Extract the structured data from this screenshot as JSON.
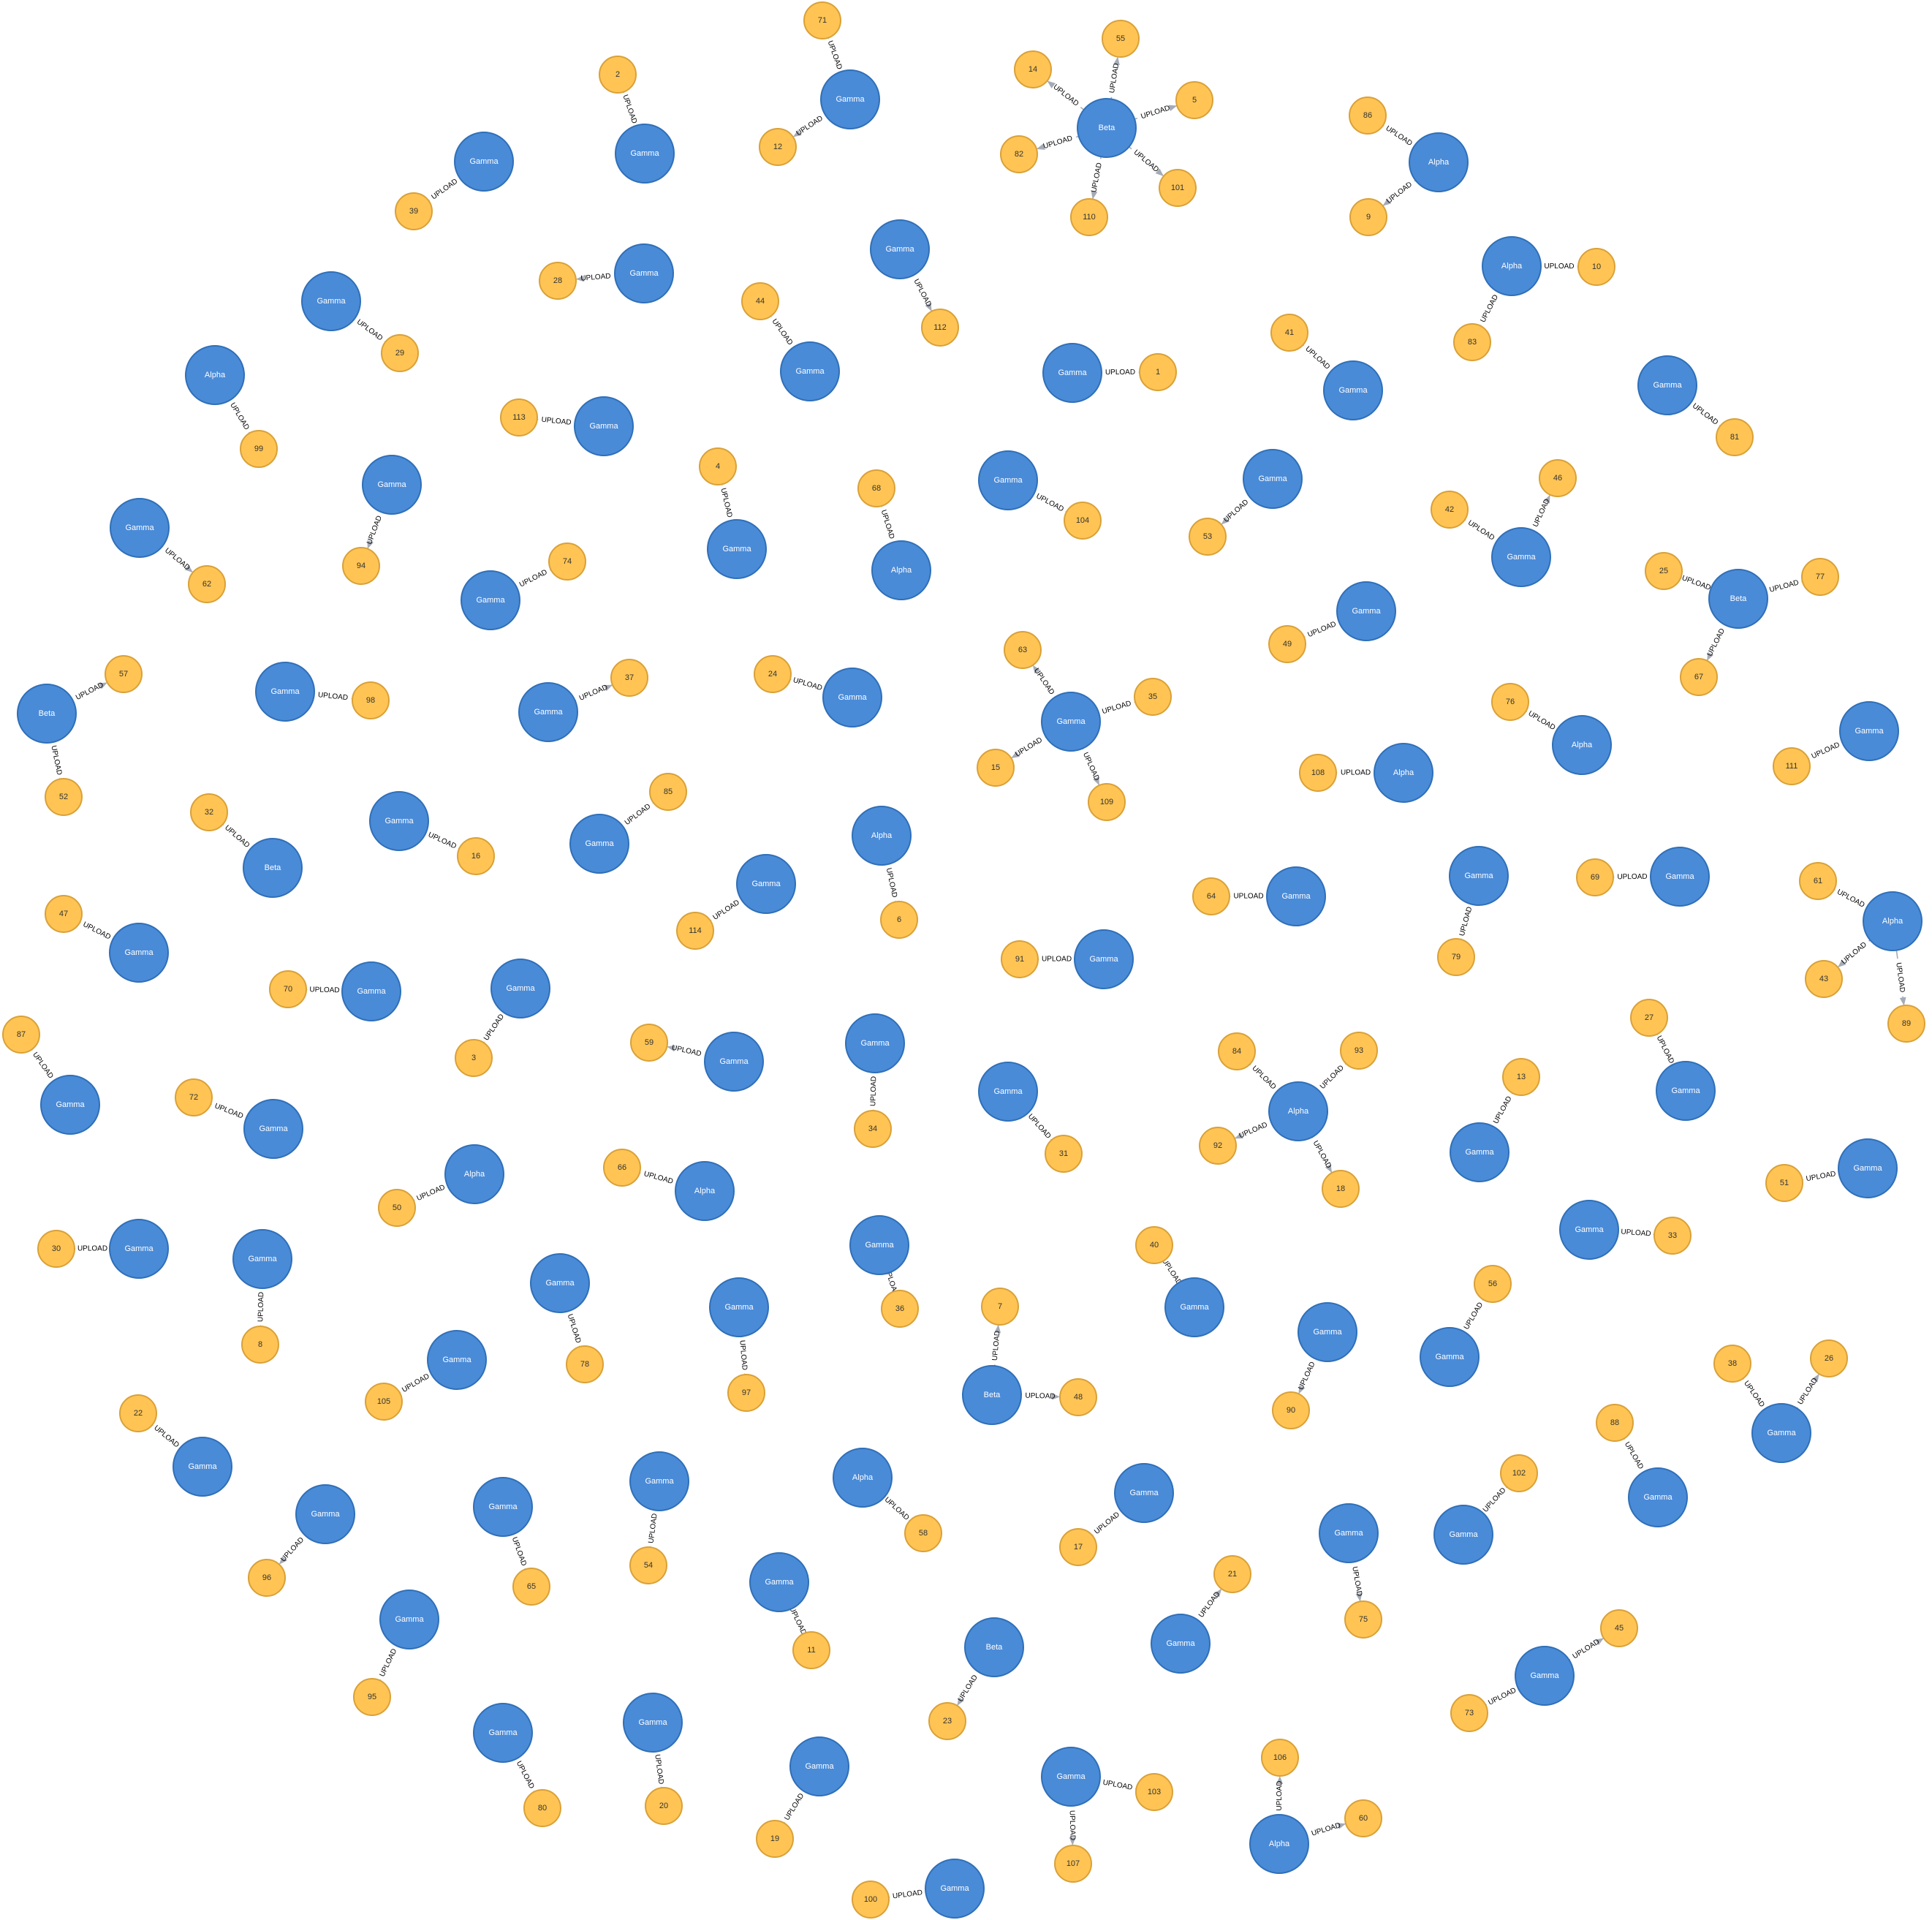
{
  "edge_label": "UPLOAD",
  "colors": {
    "hub_fill": "#4a8bd8",
    "hub_stroke": "#2f6fb8",
    "leaf_fill": "#ffc454",
    "leaf_stroke": "#d9a138",
    "edge": "#a5abb6"
  },
  "clusters": [
    {
      "label": "Gamma",
      "leaves": [
        "39"
      ]
    },
    {
      "label": "Gamma",
      "leaves": [
        "2"
      ]
    },
    {
      "label": "Gamma",
      "leaves": [
        "71",
        "12"
      ]
    },
    {
      "label": "Beta",
      "leaves": [
        "14",
        "55",
        "5",
        "82",
        "101",
        "110"
      ]
    },
    {
      "label": "Alpha",
      "leaves": [
        "86",
        "9"
      ]
    },
    {
      "label": "Gamma",
      "leaves": [
        "28"
      ]
    },
    {
      "label": "Gamma",
      "leaves": [
        "29"
      ]
    },
    {
      "label": "Gamma",
      "leaves": [
        "112"
      ]
    },
    {
      "label": "Gamma",
      "leaves": [
        "44"
      ]
    },
    {
      "label": "Alpha",
      "leaves": [
        "10",
        "83"
      ]
    },
    {
      "label": "Alpha",
      "leaves": [
        "99"
      ]
    },
    {
      "label": "Gamma",
      "leaves": [
        "1"
      ]
    },
    {
      "label": "Gamma",
      "leaves": [
        "41"
      ]
    },
    {
      "label": "Gamma",
      "leaves": [
        "113"
      ]
    },
    {
      "label": "Gamma",
      "leaves": [
        "81"
      ]
    },
    {
      "label": "Gamma",
      "leaves": [
        "94"
      ]
    },
    {
      "label": "Gamma",
      "leaves": [
        "4"
      ]
    },
    {
      "label": "Alpha",
      "leaves": [
        "68"
      ]
    },
    {
      "label": "Gamma",
      "leaves": [
        "104"
      ]
    },
    {
      "label": "Gamma",
      "leaves": [
        "53"
      ]
    },
    {
      "label": "Gamma",
      "leaves": [
        "42",
        "46"
      ]
    },
    {
      "label": "Gamma",
      "leaves": [
        "62"
      ]
    },
    {
      "label": "Gamma",
      "leaves": [
        "74"
      ]
    },
    {
      "label": "Beta",
      "leaves": [
        "25",
        "77",
        "67"
      ]
    },
    {
      "label": "Gamma",
      "leaves": [
        "49"
      ]
    },
    {
      "label": "Beta",
      "leaves": [
        "57",
        "52"
      ]
    },
    {
      "label": "Gamma",
      "leaves": [
        "98"
      ]
    },
    {
      "label": "Gamma",
      "leaves": [
        "37"
      ]
    },
    {
      "label": "Gamma",
      "leaves": [
        "24"
      ]
    },
    {
      "label": "Gamma",
      "leaves": [
        "63",
        "35",
        "15",
        "109"
      ]
    },
    {
      "label": "Alpha",
      "leaves": [
        "76"
      ]
    },
    {
      "label": "Gamma",
      "leaves": [
        "111"
      ]
    },
    {
      "label": "Alpha",
      "leaves": [
        "108"
      ]
    },
    {
      "label": "Beta",
      "leaves": [
        "32"
      ]
    },
    {
      "label": "Gamma",
      "leaves": [
        "16"
      ]
    },
    {
      "label": "Gamma",
      "leaves": [
        "85"
      ]
    },
    {
      "label": "Alpha",
      "leaves": [
        "6"
      ]
    },
    {
      "label": "Gamma",
      "leaves": [
        "114"
      ]
    },
    {
      "label": "Gamma",
      "leaves": [
        "64"
      ]
    },
    {
      "label": "Gamma",
      "leaves": [
        "79"
      ]
    },
    {
      "label": "Gamma",
      "leaves": [
        "69"
      ]
    },
    {
      "label": "Alpha",
      "leaves": [
        "61",
        "43",
        "89"
      ]
    },
    {
      "label": "Gamma",
      "leaves": [
        "47"
      ]
    },
    {
      "label": "Gamma",
      "leaves": [
        "70"
      ]
    },
    {
      "label": "Gamma",
      "leaves": [
        "91"
      ]
    },
    {
      "label": "Gamma",
      "leaves": [
        "3"
      ]
    },
    {
      "label": "Gamma",
      "leaves": [
        "87"
      ]
    },
    {
      "label": "Gamma",
      "leaves": [
        "59"
      ]
    },
    {
      "label": "Gamma",
      "leaves": [
        "34"
      ]
    },
    {
      "label": "Gamma",
      "leaves": [
        "31"
      ]
    },
    {
      "label": "Alpha",
      "leaves": [
        "84",
        "93",
        "92",
        "18"
      ]
    },
    {
      "label": "Gamma",
      "leaves": [
        "13"
      ]
    },
    {
      "label": "Gamma",
      "leaves": [
        "27"
      ]
    },
    {
      "label": "Gamma",
      "leaves": [
        "72"
      ]
    },
    {
      "label": "Alpha",
      "leaves": [
        "50"
      ]
    },
    {
      "label": "Alpha",
      "leaves": [
        "66"
      ]
    },
    {
      "label": "Gamma",
      "leaves": [
        "51"
      ]
    },
    {
      "label": "Gamma",
      "leaves": [
        "33"
      ]
    },
    {
      "label": "Gamma",
      "leaves": [
        "30"
      ]
    },
    {
      "label": "Gamma",
      "leaves": [
        "8"
      ]
    },
    {
      "label": "Gamma",
      "leaves": [
        "78"
      ]
    },
    {
      "label": "Gamma",
      "leaves": [
        "36"
      ]
    },
    {
      "label": "Gamma",
      "leaves": [
        "97"
      ]
    },
    {
      "label": "Gamma",
      "leaves": [
        "40"
      ]
    },
    {
      "label": "Beta",
      "leaves": [
        "7",
        "48"
      ]
    },
    {
      "label": "Gamma",
      "leaves": [
        "90"
      ]
    },
    {
      "label": "Gamma",
      "leaves": [
        "56"
      ]
    },
    {
      "label": "Gamma",
      "leaves": [
        "38",
        "26"
      ]
    },
    {
      "label": "Gamma",
      "leaves": [
        "105"
      ]
    },
    {
      "label": "Gamma",
      "leaves": [
        "22"
      ]
    },
    {
      "label": "Gamma",
      "leaves": [
        "88"
      ]
    },
    {
      "label": "Gamma",
      "leaves": [
        "96"
      ]
    },
    {
      "label": "Gamma",
      "leaves": [
        "65"
      ]
    },
    {
      "label": "Gamma",
      "leaves": [
        "54"
      ]
    },
    {
      "label": "Alpha",
      "leaves": [
        "58"
      ]
    },
    {
      "label": "Gamma",
      "leaves": [
        "17"
      ]
    },
    {
      "label": "Gamma",
      "leaves": [
        "102"
      ]
    },
    {
      "label": "Gamma",
      "leaves": [
        "75"
      ]
    },
    {
      "label": "Gamma",
      "leaves": [
        "21"
      ]
    },
    {
      "label": "Gamma",
      "leaves": [
        "11"
      ]
    },
    {
      "label": "Beta",
      "leaves": [
        "23"
      ]
    },
    {
      "label": "Gamma",
      "leaves": [
        "95"
      ]
    },
    {
      "label": "Gamma",
      "leaves": [
        "45",
        "73"
      ]
    },
    {
      "label": "Gamma",
      "leaves": [
        "80"
      ]
    },
    {
      "label": "Gamma",
      "leaves": [
        "20"
      ]
    },
    {
      "label": "Gamma",
      "leaves": [
        "19"
      ]
    },
    {
      "label": "Gamma",
      "leaves": [
        "103",
        "107"
      ]
    },
    {
      "label": "Alpha",
      "leaves": [
        "106",
        "60"
      ]
    },
    {
      "label": "Gamma",
      "leaves": [
        "100"
      ]
    }
  ]
}
